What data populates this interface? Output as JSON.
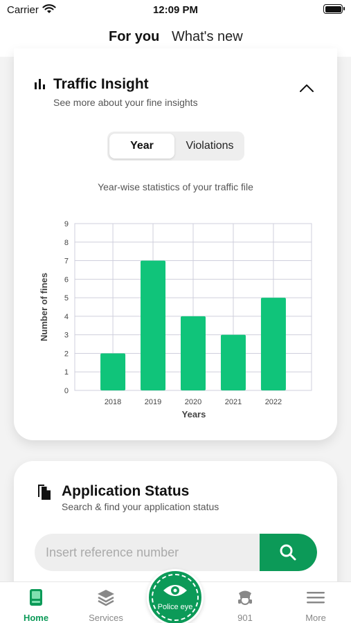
{
  "status_bar": {
    "carrier": "Carrier",
    "time": "12:09 PM"
  },
  "top_tabs": {
    "for_you": "For you",
    "whats_new": "What's new",
    "active": "For you"
  },
  "traffic_insight": {
    "title": "Traffic Insight",
    "subtitle": "See more about your fine insights",
    "segments": {
      "year": "Year",
      "violations": "Violations",
      "selected": "Year"
    },
    "chart_caption": "Year-wise statistics of your traffic file"
  },
  "chart_data": {
    "type": "bar",
    "categories": [
      "2018",
      "2019",
      "2020",
      "2021",
      "2022"
    ],
    "values": [
      2,
      7,
      4,
      3,
      5
    ],
    "ylim": [
      0,
      9
    ],
    "yticks": [
      "0",
      "1",
      "2",
      "3",
      "4",
      "5",
      "6",
      "7",
      "8",
      "9"
    ],
    "xlabel": "Years",
    "ylabel": "Number of fines",
    "bar_color": "#10c47a",
    "grid": true,
    "data_labels": false
  },
  "application_status": {
    "title": "Application Status",
    "subtitle": "Search & find your application status",
    "search_placeholder": "Insert reference number"
  },
  "bottom_nav": {
    "home": "Home",
    "services": "Services",
    "police_eye": "Police eye",
    "phone_901": "901",
    "more": "More",
    "active": "Home"
  },
  "colors": {
    "accent": "#0c9a58",
    "bar": "#10c47a"
  }
}
